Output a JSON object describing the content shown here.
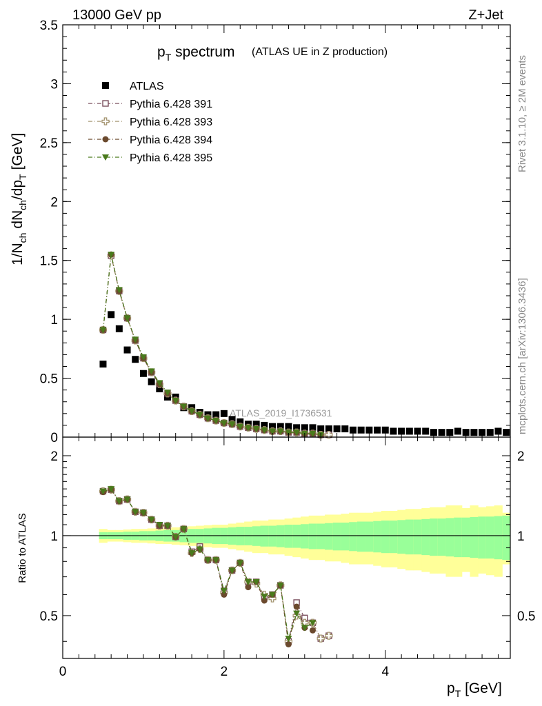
{
  "header": {
    "energy_label": "13000 GeV pp",
    "process_label": "Z+Jet"
  },
  "side_labels": {
    "rivet": "Rivet 3.1.10, ≥ 2M events",
    "mcplots": "mcplots.cern.ch [arXiv:1306.3436]"
  },
  "chart_data": [
    {
      "type": "scatter",
      "panel": "main",
      "title_main": "p",
      "title_sub": "T",
      "title_rest": " spectrum",
      "title_note": "(ATLAS UE in Z production)",
      "watermark": "ATLAS_2019_I1736531",
      "ylabel_parts": [
        "1/N",
        "ch",
        " dN",
        "ch",
        "/dp",
        "T",
        " [GeV]"
      ],
      "xlim": [
        0,
        5.55
      ],
      "ylim": [
        0,
        3.5
      ],
      "yticks": [
        0,
        0.5,
        1,
        1.5,
        2,
        2.5,
        3,
        3.5
      ],
      "ytick_labels": [
        "0",
        "0.5",
        "1",
        "1.5",
        "2",
        "2.5",
        "3",
        "3.5"
      ],
      "legend_position": "top-left",
      "x": [
        0.5,
        0.6,
        0.7,
        0.8,
        0.9,
        1.0,
        1.1,
        1.2,
        1.3,
        1.4,
        1.5,
        1.6,
        1.7,
        1.8,
        1.9,
        2.0,
        2.1,
        2.2,
        2.3,
        2.4,
        2.5,
        2.6,
        2.7,
        2.8,
        2.9,
        3.0,
        3.1,
        3.2,
        3.3,
        3.4,
        3.5,
        3.6,
        3.7,
        3.8,
        3.9,
        4.0,
        4.1,
        4.2,
        4.3,
        4.4,
        4.5,
        4.6,
        4.7,
        4.8,
        4.9,
        5.0,
        5.1,
        5.2,
        5.3,
        5.4,
        5.5
      ],
      "series": [
        {
          "name": "ATLAS",
          "color": "#000000",
          "marker": "square-filled",
          "values": [
            0.62,
            1.04,
            0.92,
            0.74,
            0.66,
            0.54,
            0.47,
            0.41,
            0.34,
            0.34,
            0.25,
            0.25,
            0.21,
            0.19,
            0.19,
            0.2,
            0.15,
            0.13,
            0.11,
            0.11,
            0.1,
            0.09,
            0.09,
            0.09,
            0.08,
            0.08,
            0.08,
            0.07,
            0.07,
            0.07,
            0.07,
            0.06,
            0.06,
            0.06,
            0.06,
            0.06,
            0.05,
            0.05,
            0.05,
            0.05,
            0.05,
            0.04,
            0.04,
            0.04,
            0.05,
            0.04,
            0.04,
            0.04,
            0.04,
            0.05,
            0.04
          ]
        },
        {
          "name": "Pythia 6.428 391",
          "color": "#7b4f5e",
          "marker": "square-open",
          "values": [
            0.91,
            1.54,
            1.24,
            1.01,
            0.82,
            0.67,
            0.55,
            0.45,
            0.37,
            0.31,
            0.26,
            0.22,
            0.19,
            0.16,
            0.14,
            0.12,
            0.11,
            0.09,
            0.08,
            0.07,
            0.06,
            0.05,
            0.05,
            0.04,
            0.04,
            0.03,
            0.03,
            0.02,
            0.02
          ]
        },
        {
          "name": "Pythia 6.428 393",
          "color": "#a0906a",
          "marker": "cross-open",
          "values": [
            0.91,
            1.54,
            1.24,
            1.01,
            0.82,
            0.67,
            0.55,
            0.45,
            0.37,
            0.31,
            0.26,
            0.22,
            0.19,
            0.16,
            0.14,
            0.12,
            0.11,
            0.09,
            0.08,
            0.07,
            0.06,
            0.05,
            0.05,
            0.04,
            0.04,
            0.03,
            0.03,
            0.02,
            0.02
          ]
        },
        {
          "name": "Pythia 6.428 394",
          "color": "#6b4a2e",
          "marker": "circle-filled",
          "values": [
            0.91,
            1.55,
            1.24,
            1.01,
            0.82,
            0.67,
            0.55,
            0.45,
            0.37,
            0.31,
            0.26,
            0.22,
            0.19,
            0.16,
            0.14,
            0.12,
            0.11,
            0.09,
            0.08,
            0.07,
            0.06,
            0.05,
            0.05,
            0.04,
            0.04,
            0.03,
            0.03,
            0.02
          ]
        },
        {
          "name": "Pythia 6.428 395",
          "color": "#4a7a1c",
          "marker": "triangle-down-filled",
          "values": [
            0.91,
            1.55,
            1.25,
            1.01,
            0.83,
            0.68,
            0.56,
            0.46,
            0.38,
            0.31,
            0.26,
            0.22,
            0.19,
            0.16,
            0.14,
            0.12,
            0.11,
            0.09,
            0.08,
            0.07,
            0.06,
            0.05,
            0.05,
            0.04,
            0.04,
            0.03,
            0.03,
            0.02
          ]
        }
      ]
    },
    {
      "type": "scatter",
      "panel": "ratio",
      "ylabel": "Ratio to ATLAS",
      "xlabel_main": "p",
      "xlabel_sub": "T",
      "xlabel_unit": " [GeV]",
      "xlim": [
        0,
        5.55
      ],
      "ylim": [
        0.345,
        2.35
      ],
      "yscale": "log",
      "yticks": [
        0.5,
        1,
        2
      ],
      "ytick_labels": [
        "0.5",
        "1",
        "2"
      ],
      "xticks": [
        0,
        2,
        4
      ],
      "xtick_labels": [
        "0",
        "2",
        "4"
      ],
      "reference_line": 1,
      "band_colors": {
        "stat": "#99ff99",
        "total": "#ffff99"
      },
      "band_x": [
        0.45,
        0.55,
        0.65,
        0.75,
        0.85,
        0.95,
        1.05,
        1.15,
        1.25,
        1.35,
        1.45,
        1.55,
        1.65,
        1.75,
        1.85,
        1.95,
        2.05,
        2.15,
        2.25,
        2.35,
        2.45,
        2.55,
        2.65,
        2.75,
        2.85,
        2.95,
        3.05,
        3.15,
        3.25,
        3.35,
        3.45,
        3.55,
        3.65,
        3.75,
        3.85,
        3.95,
        4.05,
        4.15,
        4.25,
        4.35,
        4.45,
        4.55,
        4.65,
        4.75,
        4.85,
        4.95,
        5.05,
        5.15,
        5.25,
        5.35,
        5.45,
        5.55
      ],
      "stat_half": [
        0.03,
        0.03,
        0.03,
        0.035,
        0.035,
        0.04,
        0.04,
        0.045,
        0.05,
        0.05,
        0.055,
        0.06,
        0.06,
        0.065,
        0.07,
        0.07,
        0.075,
        0.08,
        0.08,
        0.085,
        0.09,
        0.09,
        0.095,
        0.1,
        0.1,
        0.105,
        0.11,
        0.11,
        0.115,
        0.12,
        0.12,
        0.125,
        0.13,
        0.13,
        0.135,
        0.14,
        0.14,
        0.145,
        0.15,
        0.15,
        0.155,
        0.16,
        0.16,
        0.165,
        0.17,
        0.17,
        0.175,
        0.18,
        0.18,
        0.185,
        0.19
      ],
      "total_half": [
        0.06,
        0.05,
        0.05,
        0.055,
        0.06,
        0.06,
        0.065,
        0.07,
        0.07,
        0.075,
        0.08,
        0.085,
        0.09,
        0.095,
        0.1,
        0.1,
        0.11,
        0.12,
        0.13,
        0.14,
        0.14,
        0.15,
        0.15,
        0.16,
        0.17,
        0.18,
        0.19,
        0.19,
        0.2,
        0.2,
        0.21,
        0.22,
        0.22,
        0.22,
        0.23,
        0.24,
        0.24,
        0.25,
        0.26,
        0.26,
        0.27,
        0.28,
        0.28,
        0.3,
        0.3,
        0.27,
        0.3,
        0.28,
        0.29,
        0.3,
        0.22
      ],
      "x": [
        0.5,
        0.6,
        0.7,
        0.8,
        0.9,
        1.0,
        1.1,
        1.2,
        1.3,
        1.4,
        1.5,
        1.6,
        1.7,
        1.8,
        1.9,
        2.0,
        2.1,
        2.2,
        2.3,
        2.4,
        2.5,
        2.6,
        2.7,
        2.8,
        2.9,
        3.0,
        3.1,
        3.2,
        3.3
      ],
      "series": [
        {
          "name": "Pythia 6.428 391",
          "color": "#7b4f5e",
          "marker": "square-open",
          "values": [
            1.47,
            1.49,
            1.35,
            1.37,
            1.23,
            1.22,
            1.15,
            1.09,
            1.09,
            0.99,
            1.06,
            0.87,
            0.91,
            0.81,
            0.81,
            0.62,
            0.74,
            0.79,
            0.67,
            0.67,
            0.59,
            0.6,
            0.65,
            0.4,
            0.56,
            0.49,
            0.47,
            0.41,
            0.42
          ]
        },
        {
          "name": "Pythia 6.428 393",
          "color": "#a0906a",
          "marker": "cross-open",
          "values": [
            1.47,
            1.49,
            1.35,
            1.37,
            1.23,
            1.22,
            1.15,
            1.09,
            1.09,
            0.99,
            1.06,
            0.86,
            0.89,
            0.81,
            0.81,
            0.61,
            0.74,
            0.79,
            0.67,
            0.66,
            0.6,
            0.58,
            0.65,
            0.4,
            0.5,
            0.47,
            0.47,
            0.41,
            0.42
          ]
        },
        {
          "name": "Pythia 6.428 394",
          "color": "#6b4a2e",
          "marker": "circle-filled",
          "values": [
            1.46,
            1.49,
            1.35,
            1.37,
            1.23,
            1.22,
            1.15,
            1.09,
            1.09,
            0.99,
            1.06,
            0.86,
            0.89,
            0.81,
            0.81,
            0.6,
            0.74,
            0.79,
            0.64,
            0.67,
            0.57,
            0.6,
            0.65,
            0.39,
            0.54,
            0.45,
            0.44,
            null,
            null
          ]
        },
        {
          "name": "Pythia 6.428 395",
          "color": "#4a7a1c",
          "marker": "triangle-down-filled",
          "values": [
            1.47,
            1.5,
            1.35,
            1.37,
            1.23,
            1.22,
            1.15,
            1.1,
            1.09,
            0.99,
            1.06,
            0.86,
            0.89,
            0.81,
            0.81,
            0.62,
            0.74,
            0.79,
            0.67,
            0.67,
            0.59,
            0.6,
            0.65,
            0.41,
            0.51,
            0.45,
            0.47,
            null,
            null
          ]
        }
      ]
    }
  ]
}
